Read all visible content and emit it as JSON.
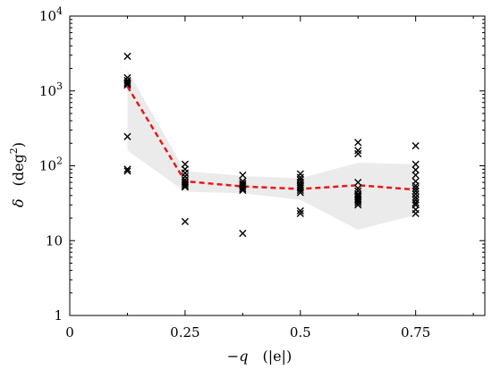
{
  "chart_data": {
    "type": "scatter",
    "xlabel": "−q   (|e|)",
    "xlabel_parts": {
      "var": "−q",
      "unit": "(|e|)"
    },
    "ylabel": "δ   (deg²)",
    "ylabel_parts": {
      "var": "δ",
      "unit_prefix": "(deg",
      "unit_sup": "2",
      "unit_suffix": ")"
    },
    "xlim": [
      0,
      0.9
    ],
    "ylim": [
      1,
      10000
    ],
    "yscale": "log",
    "grid": false,
    "x_ticks": [
      {
        "value": 0,
        "label": "0"
      },
      {
        "value": 0.25,
        "label": "0.25"
      },
      {
        "value": 0.5,
        "label": "0.5"
      },
      {
        "value": 0.75,
        "label": "0.75"
      }
    ],
    "y_ticks": [
      {
        "value": 1,
        "label": "1",
        "sup": ""
      },
      {
        "value": 10,
        "label": "10",
        "sup": ""
      },
      {
        "value": 100,
        "label": "10",
        "sup": "2"
      },
      {
        "value": 1000,
        "label": "10",
        "sup": "3"
      },
      {
        "value": 10000,
        "label": "10",
        "sup": "4"
      }
    ],
    "scatter_series": {
      "marker": "x",
      "color": "#000000",
      "points": [
        [
          0.125,
          2900
        ],
        [
          0.125,
          1500
        ],
        [
          0.125,
          1380
        ],
        [
          0.125,
          1300
        ],
        [
          0.125,
          1250
        ],
        [
          0.125,
          1200
        ],
        [
          0.125,
          245
        ],
        [
          0.125,
          90
        ],
        [
          0.125,
          85
        ],
        [
          0.25,
          105
        ],
        [
          0.25,
          90
        ],
        [
          0.25,
          80
        ],
        [
          0.25,
          72
        ],
        [
          0.25,
          65
        ],
        [
          0.25,
          60
        ],
        [
          0.25,
          57
        ],
        [
          0.25,
          54
        ],
        [
          0.25,
          52
        ],
        [
          0.25,
          18
        ],
        [
          0.375,
          75
        ],
        [
          0.375,
          62
        ],
        [
          0.375,
          58
        ],
        [
          0.375,
          55
        ],
        [
          0.375,
          52
        ],
        [
          0.375,
          49
        ],
        [
          0.375,
          47
        ],
        [
          0.375,
          12.5
        ],
        [
          0.5,
          78
        ],
        [
          0.5,
          70
        ],
        [
          0.5,
          65
        ],
        [
          0.5,
          60
        ],
        [
          0.5,
          56
        ],
        [
          0.5,
          53
        ],
        [
          0.5,
          50
        ],
        [
          0.5,
          47
        ],
        [
          0.5,
          44
        ],
        [
          0.5,
          25
        ],
        [
          0.5,
          23
        ],
        [
          0.625,
          205
        ],
        [
          0.625,
          160
        ],
        [
          0.625,
          145
        ],
        [
          0.625,
          60
        ],
        [
          0.625,
          50
        ],
        [
          0.625,
          46
        ],
        [
          0.625,
          42
        ],
        [
          0.625,
          40
        ],
        [
          0.625,
          38
        ],
        [
          0.625,
          36
        ],
        [
          0.625,
          34
        ],
        [
          0.625,
          32
        ],
        [
          0.625,
          30
        ],
        [
          0.75,
          185
        ],
        [
          0.75,
          105
        ],
        [
          0.75,
          88
        ],
        [
          0.75,
          75
        ],
        [
          0.75,
          62
        ],
        [
          0.75,
          54
        ],
        [
          0.75,
          50
        ],
        [
          0.75,
          46
        ],
        [
          0.75,
          42
        ],
        [
          0.75,
          38
        ],
        [
          0.75,
          35
        ],
        [
          0.75,
          32
        ],
        [
          0.75,
          30
        ],
        [
          0.75,
          26
        ],
        [
          0.75,
          23
        ]
      ]
    },
    "line_series": {
      "style": "dashed",
      "color": "#e8191a",
      "points": [
        [
          0.125,
          1150
        ],
        [
          0.25,
          62
        ],
        [
          0.375,
          53
        ],
        [
          0.5,
          49
        ],
        [
          0.625,
          55
        ],
        [
          0.75,
          48
        ]
      ]
    },
    "band": {
      "color": "#ebebeb",
      "upper": [
        [
          0.125,
          1900
        ],
        [
          0.25,
          85
        ],
        [
          0.375,
          73
        ],
        [
          0.5,
          68
        ],
        [
          0.625,
          110
        ],
        [
          0.75,
          105
        ]
      ],
      "lower": [
        [
          0.125,
          160
        ],
        [
          0.25,
          45
        ],
        [
          0.375,
          43
        ],
        [
          0.5,
          35
        ],
        [
          0.625,
          14
        ],
        [
          0.75,
          22
        ]
      ]
    }
  }
}
